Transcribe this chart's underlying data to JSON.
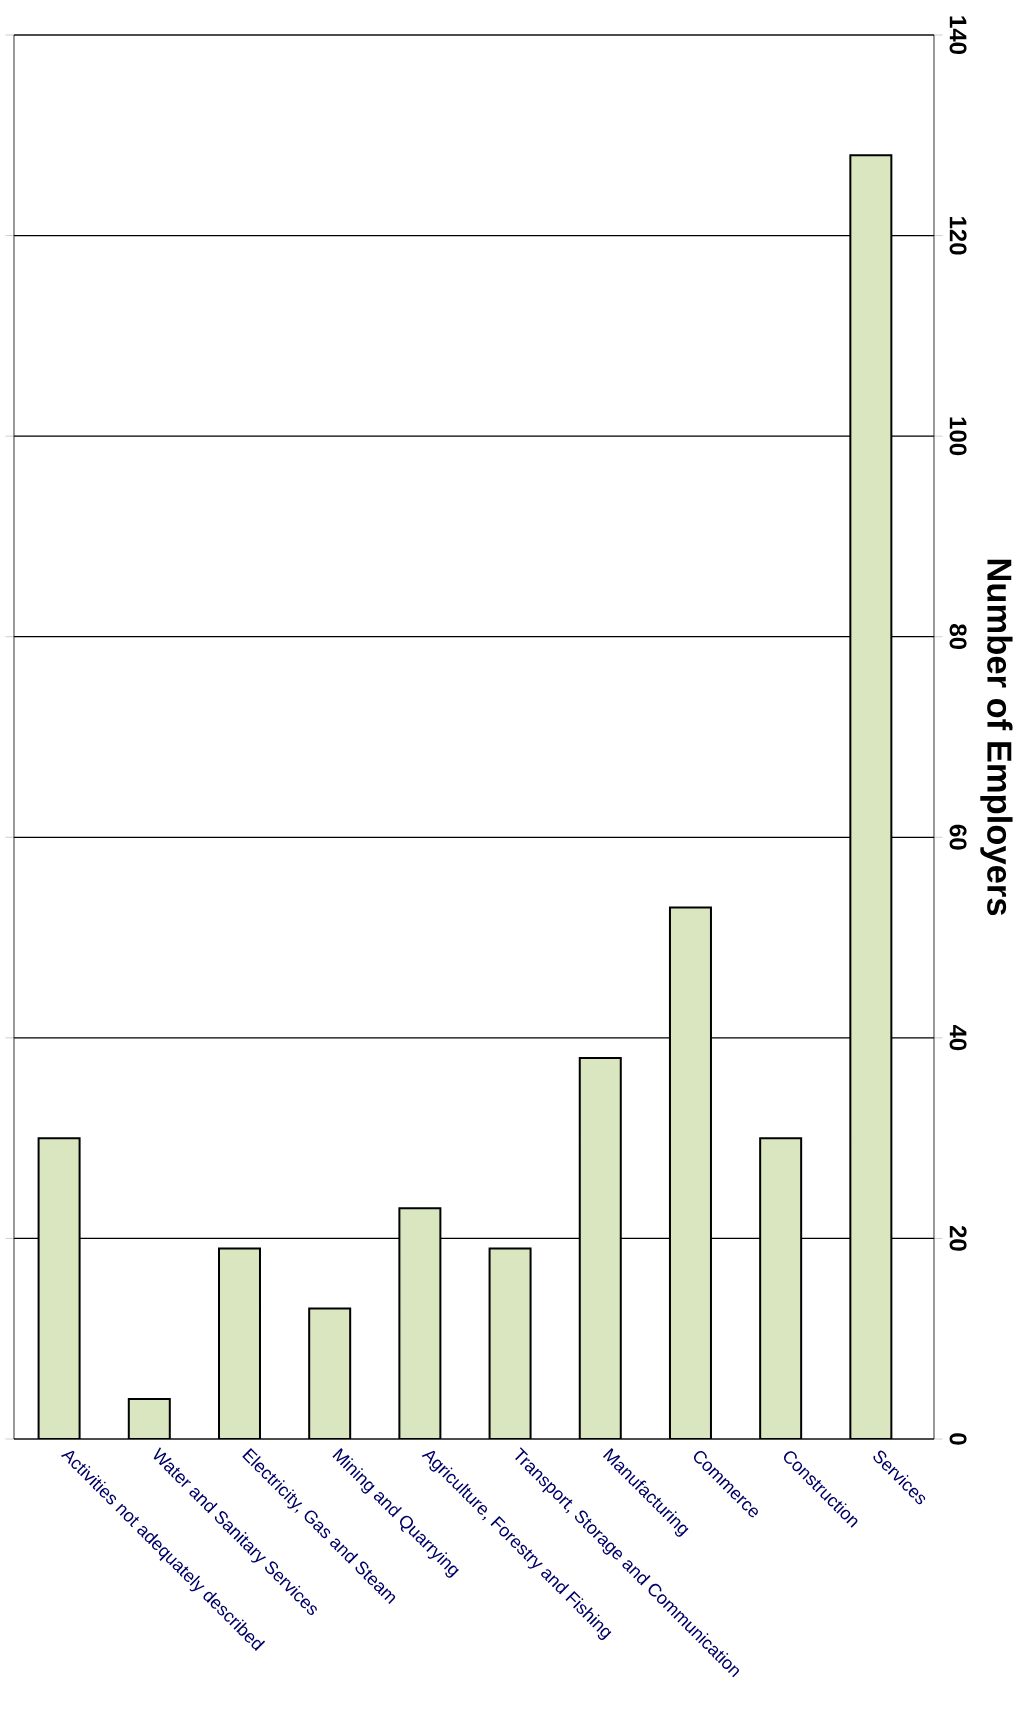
{
  "chart_data": {
    "type": "bar",
    "categories": [
      "Activities not adequately described",
      "Water and Sanitary Services",
      "Electricity, Gas and Steam",
      "Mining and Quarrying",
      "Agriculture, Forestry and Fishing",
      "Transport, Storage and Communication",
      "Manufacturing",
      "Commerce",
      "Construction",
      "Services"
    ],
    "values": [
      30,
      4,
      19,
      13,
      23,
      19,
      38,
      53,
      30,
      128
    ],
    "color": "#d9e6bf",
    "ylabel": "Number of Employers",
    "ylim": [
      0,
      140
    ],
    "yticks": [
      0,
      20,
      40,
      60,
      80,
      100,
      120,
      140
    ],
    "grid": true
  }
}
